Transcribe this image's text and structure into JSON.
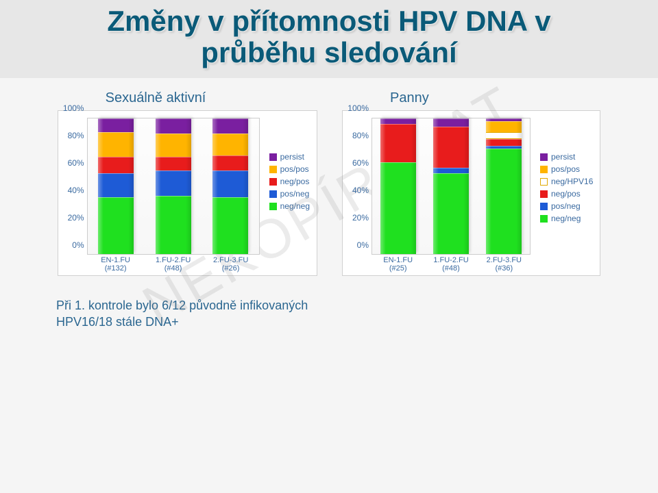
{
  "title_line1": "Změny v přítomnosti HPV DNA v",
  "title_line2": "průběhu sledování",
  "watermark": "NEKOPÍROVAT",
  "yticks": [
    "0%",
    "20%",
    "40%",
    "60%",
    "80%",
    "100%"
  ],
  "chart_left": {
    "label": "Sexuálně aktivní",
    "type": "stacked_bar",
    "ylim": [
      0,
      100
    ],
    "categories": [
      {
        "label_top": "EN-1.FU",
        "label_bot": "(#132)"
      },
      {
        "label_top": "1.FU-2.FU",
        "label_bot": "(#48)"
      },
      {
        "label_top": "2.FU-3.FU",
        "label_bot": "(#26)"
      }
    ],
    "series_order": [
      "neg/neg",
      "pos/neg",
      "neg/pos",
      "pos/pos",
      "persist"
    ],
    "legend_order": [
      "persist",
      "pos/pos",
      "neg/pos",
      "pos/neg",
      "neg/neg"
    ],
    "colors": {
      "persist": "#7a1fa0",
      "pos/pos": "#ffb400",
      "neg/pos": "#e81c1c",
      "pos/neg": "#1e5bd6",
      "neg/neg": "#1fe01f"
    },
    "data": [
      {
        "neg/neg": 42,
        "pos/neg": 18,
        "neg/pos": 12,
        "pos/pos": 18,
        "persist": 10
      },
      {
        "neg/neg": 43,
        "pos/neg": 19,
        "neg/pos": 10,
        "pos/pos": 17,
        "persist": 11
      },
      {
        "neg/neg": 42,
        "pos/neg": 20,
        "neg/pos": 11,
        "pos/pos": 16,
        "persist": 11
      }
    ]
  },
  "chart_right": {
    "label": "Panny",
    "type": "stacked_bar",
    "ylim": [
      0,
      100
    ],
    "categories": [
      {
        "label_top": "EN-1.FU",
        "label_bot": "(#25)"
      },
      {
        "label_top": "1.FU-2.FU",
        "label_bot": "(#48)"
      },
      {
        "label_top": "2.FU-3.FU",
        "label_bot": "(#36)"
      }
    ],
    "series_order": [
      "neg/neg",
      "pos/neg",
      "neg/pos",
      "neg/HPV16",
      "pos/pos",
      "persist"
    ],
    "legend_order": [
      "persist",
      "pos/pos",
      "neg/HPV16",
      "neg/pos",
      "pos/neg",
      "neg/neg"
    ],
    "colors": {
      "persist": "#7a1fa0",
      "pos/pos": "#ffb400",
      "neg/HPV16": "#ffffff",
      "neg/pos": "#e81c1c",
      "pos/neg": "#1e5bd6",
      "neg/neg": "#1fe01f"
    },
    "swatch_border": {
      "neg/HPV16": "#e0a800"
    },
    "data": [
      {
        "neg/neg": 68,
        "pos/neg": 0,
        "neg/pos": 28,
        "neg/HPV16": 0,
        "pos/pos": 0,
        "persist": 4
      },
      {
        "neg/neg": 60,
        "pos/neg": 4,
        "neg/pos": 30,
        "neg/HPV16": 0,
        "pos/pos": 0,
        "persist": 6
      },
      {
        "neg/neg": 78,
        "pos/neg": 2,
        "neg/pos": 5,
        "neg/HPV16": 5,
        "pos/pos": 8,
        "persist": 2
      }
    ]
  },
  "caption_line1": "Při 1. kontrole bylo 6/12 původně infikovaných",
  "caption_line2": "HPV16/18 stále DNA+"
}
